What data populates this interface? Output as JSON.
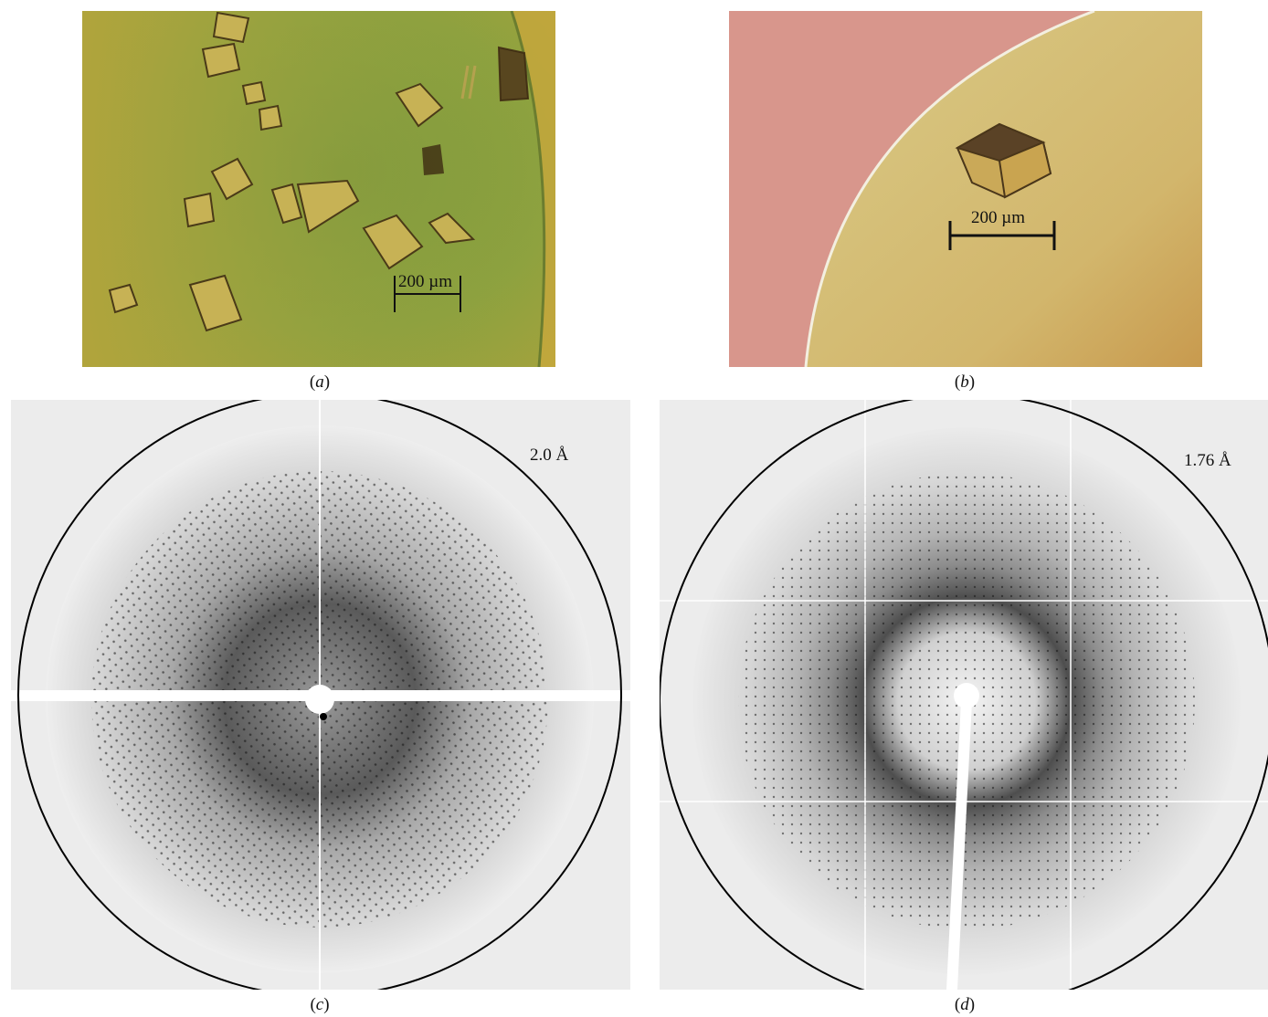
{
  "panels": {
    "a": {
      "caption_letter": "a",
      "scale_bar_label": "200 µm",
      "colors": {
        "background": "#8fa43a",
        "crystal": "#b8a650"
      }
    },
    "b": {
      "caption_letter": "b",
      "scale_bar_label": "200 µm",
      "colors": {
        "outside": "#d7958a",
        "drop": "#d8c27a"
      }
    },
    "c": {
      "caption_letter": "c",
      "resolution_label": "2.0 Å",
      "colors": {
        "background": "#ececec",
        "ring": "#000000"
      }
    },
    "d": {
      "caption_letter": "d",
      "resolution_label": "1.76 Å",
      "colors": {
        "background": "#ececec",
        "ring": "#000000"
      }
    }
  }
}
